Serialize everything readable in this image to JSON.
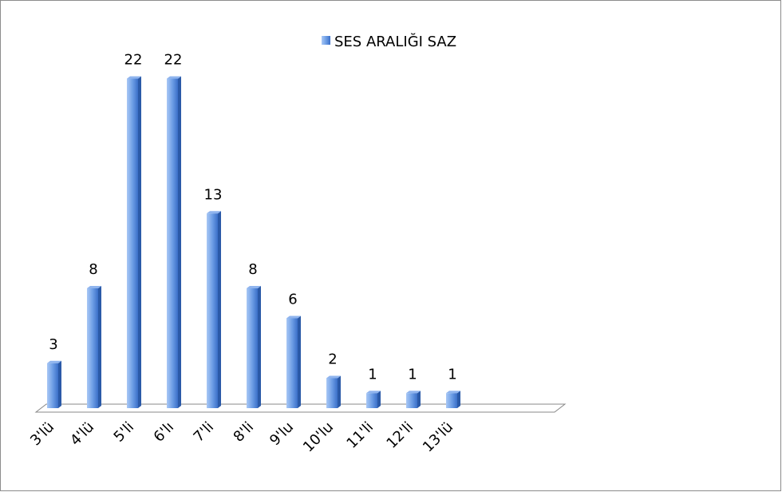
{
  "chart_data": {
    "type": "bar",
    "categories": [
      "3'lü",
      "4'lü",
      "5'li",
      "6'lı",
      "7'li",
      "8'li",
      "9'lu",
      "10'lu",
      "11'li",
      "12'li",
      "13'lü"
    ],
    "series": [
      {
        "name": "SES ARALIĞI SAZ",
        "color": "#4f81bd",
        "values": [
          3,
          8,
          22,
          22,
          13,
          8,
          6,
          2,
          1,
          1,
          1
        ]
      }
    ]
  }
}
